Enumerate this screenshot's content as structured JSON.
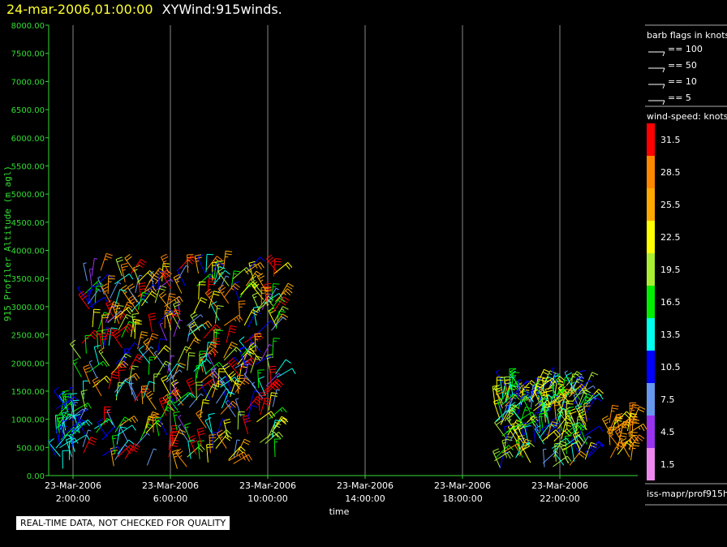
{
  "header": {
    "timestamp": "24-mar-2006,01:00:00",
    "product": "XYWind:915winds."
  },
  "notice": "REAL-TIME DATA, NOT CHECKED FOR QUALITY",
  "source_label": "iss-mapr/prof915h",
  "colors": {
    "background": "#000000",
    "axis": "#33dd33",
    "grid": "#999999",
    "title_timestamp": "#ffff33"
  },
  "chart_data": {
    "type": "scatter",
    "subtype": "wind-barbs",
    "title": "",
    "ylabel": "915 Profiler Altitude (m agl)",
    "xlabel": "time",
    "ylim": [
      0,
      8000
    ],
    "xlim_hours": [
      1.0,
      25.2
    ],
    "y_ticks": [
      "0.00",
      "500.00",
      "1000.00",
      "1500.00",
      "2000.00",
      "2500.00",
      "3000.00",
      "3500.00",
      "4000.00",
      "4500.00",
      "5000.00",
      "5500.00",
      "6000.00",
      "6500.00",
      "7000.00",
      "7500.00",
      "8000.00"
    ],
    "x_ticks": [
      {
        "hour": 2,
        "date": "23-Mar-2006",
        "time": "2:00:00"
      },
      {
        "hour": 6,
        "date": "23-Mar-2006",
        "time": "6:00:00"
      },
      {
        "hour": 10,
        "date": "23-Mar-2006",
        "time": "10:00:00"
      },
      {
        "hour": 14,
        "date": "23-Mar-2006",
        "time": "14:00:00"
      },
      {
        "hour": 18,
        "date": "23-Mar-2006",
        "time": "18:00:00"
      },
      {
        "hour": 22,
        "date": "23-Mar-2006",
        "time": "22:00:00"
      }
    ],
    "grid": "vertical",
    "barb_legend": {
      "title": "barb flags in knots",
      "items": [
        "== 100",
        "== 50",
        "== 10",
        "== 5"
      ]
    },
    "color_legend": {
      "title": "wind-speed: knots",
      "bins": [
        {
          "label": "31.5",
          "color": "#ff0000"
        },
        {
          "label": "28.5",
          "color": "#ff8800"
        },
        {
          "label": "25.5",
          "color": "#ffaa00"
        },
        {
          "label": "22.5",
          "color": "#ffff00"
        },
        {
          "label": "19.5",
          "color": "#aaee33"
        },
        {
          "label": "16.5",
          "color": "#00ee00"
        },
        {
          "label": "13.5",
          "color": "#00ffee"
        },
        {
          "label": "10.5",
          "color": "#0000ff"
        },
        {
          "label": "7.5",
          "color": "#6699ee"
        },
        {
          "label": "4.5",
          "color": "#9933ee"
        },
        {
          "label": "1.5",
          "color": "#ee88ee"
        }
      ]
    },
    "clusters": [
      {
        "hour_start": 1.2,
        "hour_end": 2.3,
        "alt_min": 100,
        "alt_max": 1300,
        "speed_min": 8,
        "speed_max": 17,
        "count": 45
      },
      {
        "hour_start": 2.3,
        "hour_end": 10.5,
        "alt_min": 100,
        "alt_max": 3700,
        "speed_min": 5,
        "speed_max": 33,
        "count": 380
      },
      {
        "hour_start": 19.3,
        "hour_end": 23.2,
        "alt_min": 100,
        "alt_max": 1600,
        "speed_min": 8,
        "speed_max": 25,
        "count": 210
      },
      {
        "hour_start": 24.0,
        "hour_end": 25.0,
        "alt_min": 150,
        "alt_max": 1000,
        "speed_min": 22,
        "speed_max": 30,
        "count": 28
      }
    ]
  }
}
